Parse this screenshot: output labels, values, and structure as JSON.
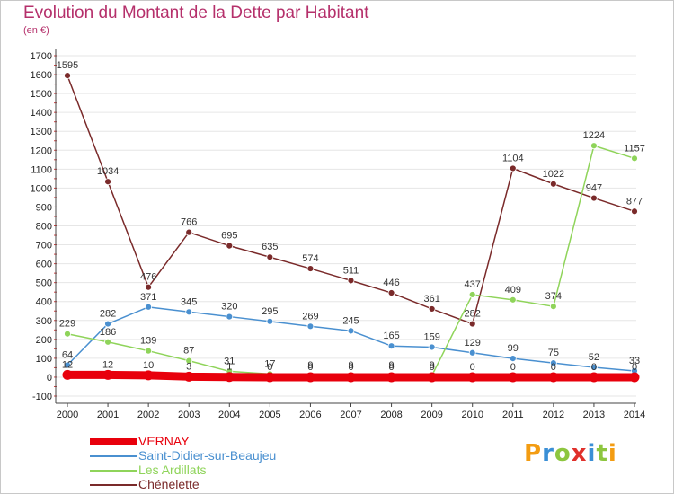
{
  "title": "Evolution du Montant de la Dette par Habitant",
  "subtitle": "(en €)",
  "logo": {
    "text": "Proxiti",
    "letters": [
      "P",
      "r",
      "o",
      "x",
      "i",
      "t",
      "i"
    ],
    "colors": [
      "#f39c12",
      "#3a8fd6",
      "#8dc63f",
      "#e0302b",
      "#3a8fd6",
      "#8dc63f",
      "#f39c12"
    ]
  },
  "chart_data": {
    "type": "line",
    "x": [
      "2000",
      "2001",
      "2002",
      "2003",
      "2004",
      "2005",
      "2006",
      "2007",
      "2008",
      "2009",
      "2010",
      "2011",
      "2012",
      "2013",
      "2014"
    ],
    "ylim": [
      -100,
      1700
    ],
    "yticks": [
      -100,
      0,
      100,
      200,
      300,
      400,
      500,
      600,
      700,
      800,
      900,
      1000,
      1100,
      1200,
      1300,
      1400,
      1500,
      1600,
      1700
    ],
    "grid": "horizontal",
    "legend_position": "bottom-left",
    "series": [
      {
        "name": "VERNAY",
        "color": "#e8000c",
        "values": [
          12,
          12,
          10,
          3,
          1,
          0,
          0,
          0,
          0,
          0,
          0,
          0,
          0,
          0,
          0
        ],
        "labels": [
          "12",
          "12",
          "10",
          "3",
          "1",
          "0",
          "0",
          "0",
          "0",
          "0",
          "0",
          "0",
          "0",
          "0",
          "0"
        ]
      },
      {
        "name": "Saint-Didier-sur-Beaujeu",
        "color": "#4a90d0",
        "values": [
          64,
          282,
          371,
          345,
          320,
          295,
          269,
          245,
          165,
          159,
          129,
          99,
          75,
          52,
          33
        ],
        "labels": [
          "64",
          "282",
          "371",
          "345",
          "320",
          "295",
          "269",
          "245",
          "165",
          "159",
          "129",
          "99",
          "75",
          "52",
          "33"
        ]
      },
      {
        "name": "Les Ardillats",
        "color": "#8fd45a",
        "values": [
          229,
          186,
          139,
          87,
          31,
          17,
          9,
          9,
          9,
          9,
          437,
          409,
          374,
          1224,
          1157
        ],
        "labels": [
          "229",
          "186",
          "139",
          "87",
          "31",
          "17",
          "9",
          "9",
          "9",
          "9",
          "437",
          "409",
          "374",
          "1224",
          "1157"
        ]
      },
      {
        "name": "Chénelette",
        "color": "#7a2a2a",
        "values": [
          1595,
          1034,
          476,
          766,
          695,
          635,
          574,
          511,
          446,
          361,
          282,
          1104,
          1022,
          947,
          877
        ],
        "labels": [
          "1595",
          "1034",
          "476",
          "766",
          "695",
          "635",
          "574",
          "511",
          "446",
          "361",
          "282",
          "1104",
          "1022",
          "947",
          "877"
        ]
      }
    ]
  }
}
